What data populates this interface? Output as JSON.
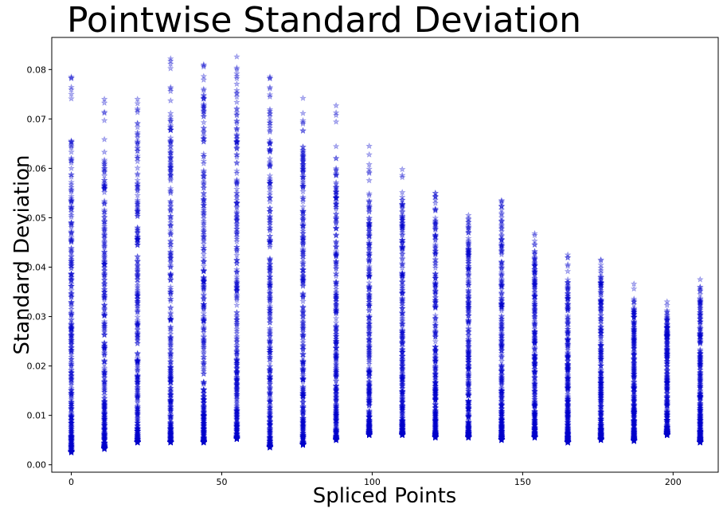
{
  "chart_data": {
    "type": "scatter",
    "title": "Pointwise Standard Deviation",
    "xlabel": "Spliced Points",
    "ylabel": "Standard Deviation",
    "xlim": [
      -6.5,
      215
    ],
    "ylim": [
      -0.0015,
      0.0865
    ],
    "xticks": [
      0,
      50,
      100,
      150,
      200
    ],
    "xtick_labels": [
      "0",
      "50",
      "100",
      "150",
      "200"
    ],
    "yticks": [
      0.0,
      0.01,
      0.02,
      0.03,
      0.04,
      0.05,
      0.06,
      0.07,
      0.08
    ],
    "ytick_labels": [
      "0.00",
      "0.01",
      "0.02",
      "0.03",
      "0.04",
      "0.05",
      "0.06",
      "0.07",
      "0.08"
    ],
    "grid": false,
    "marker": "star",
    "marker_color": "#0000cc",
    "marker_alpha": 0.3,
    "series": [
      {
        "x": 0,
        "ymin": 0.0025,
        "ymax": 0.0785,
        "dense_top": 0.066
      },
      {
        "x": 11,
        "ymin": 0.0032,
        "ymax": 0.074,
        "dense_top": 0.062
      },
      {
        "x": 22,
        "ymin": 0.0045,
        "ymax": 0.074,
        "dense_top": 0.069
      },
      {
        "x": 33,
        "ymin": 0.0045,
        "ymax": 0.0822,
        "dense_top": 0.075
      },
      {
        "x": 44,
        "ymin": 0.0045,
        "ymax": 0.081,
        "dense_top": 0.075
      },
      {
        "x": 55,
        "ymin": 0.0052,
        "ymax": 0.0826,
        "dense_top": 0.076
      },
      {
        "x": 66,
        "ymin": 0.0035,
        "ymax": 0.0785,
        "dense_top": 0.072
      },
      {
        "x": 77,
        "ymin": 0.004,
        "ymax": 0.0742,
        "dense_top": 0.065
      },
      {
        "x": 88,
        "ymin": 0.005,
        "ymax": 0.0727,
        "dense_top": 0.06
      },
      {
        "x": 99,
        "ymin": 0.006,
        "ymax": 0.0645,
        "dense_top": 0.055
      },
      {
        "x": 110,
        "ymin": 0.006,
        "ymax": 0.0598,
        "dense_top": 0.053
      },
      {
        "x": 121,
        "ymin": 0.0055,
        "ymax": 0.055,
        "dense_top": 0.052
      },
      {
        "x": 132,
        "ymin": 0.0055,
        "ymax": 0.0505,
        "dense_top": 0.048
      },
      {
        "x": 143,
        "ymin": 0.005,
        "ymax": 0.0535,
        "dense_top": 0.051
      },
      {
        "x": 154,
        "ymin": 0.0055,
        "ymax": 0.0468,
        "dense_top": 0.043
      },
      {
        "x": 165,
        "ymin": 0.0045,
        "ymax": 0.0425,
        "dense_top": 0.037
      },
      {
        "x": 176,
        "ymin": 0.005,
        "ymax": 0.0415,
        "dense_top": 0.038
      },
      {
        "x": 187,
        "ymin": 0.0048,
        "ymax": 0.0366,
        "dense_top": 0.032
      },
      {
        "x": 198,
        "ymin": 0.006,
        "ymax": 0.033,
        "dense_top": 0.03
      },
      {
        "x": 209,
        "ymin": 0.0045,
        "ymax": 0.0375,
        "dense_top": 0.034
      }
    ]
  }
}
